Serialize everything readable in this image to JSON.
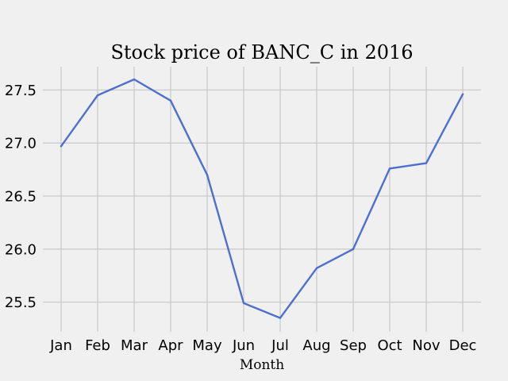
{
  "chart_data": {
    "type": "line",
    "title": "Stock price of BANC_C in 2016",
    "xlabel": "Month",
    "ylabel": "",
    "categories": [
      "Jan",
      "Feb",
      "Mar",
      "Apr",
      "May",
      "Jun",
      "Jul",
      "Aug",
      "Sep",
      "Oct",
      "Nov",
      "Dec"
    ],
    "series": [
      {
        "values": [
          26.97,
          27.45,
          27.6,
          27.4,
          26.7,
          25.49,
          25.35,
          25.82,
          26.0,
          26.76,
          26.81,
          27.46
        ],
        "color": "#4e6fce"
      }
    ],
    "yticks": [
      "25.5",
      "26.0",
      "26.5",
      "27.0",
      "27.5"
    ],
    "ytick_values": [
      25.5,
      26.0,
      26.5,
      27.0,
      27.5
    ],
    "ylim": [
      25.22,
      27.72
    ],
    "grid": true,
    "legend": false,
    "background": "#f0f0f0",
    "grid_color": "#cbcbcb"
  }
}
